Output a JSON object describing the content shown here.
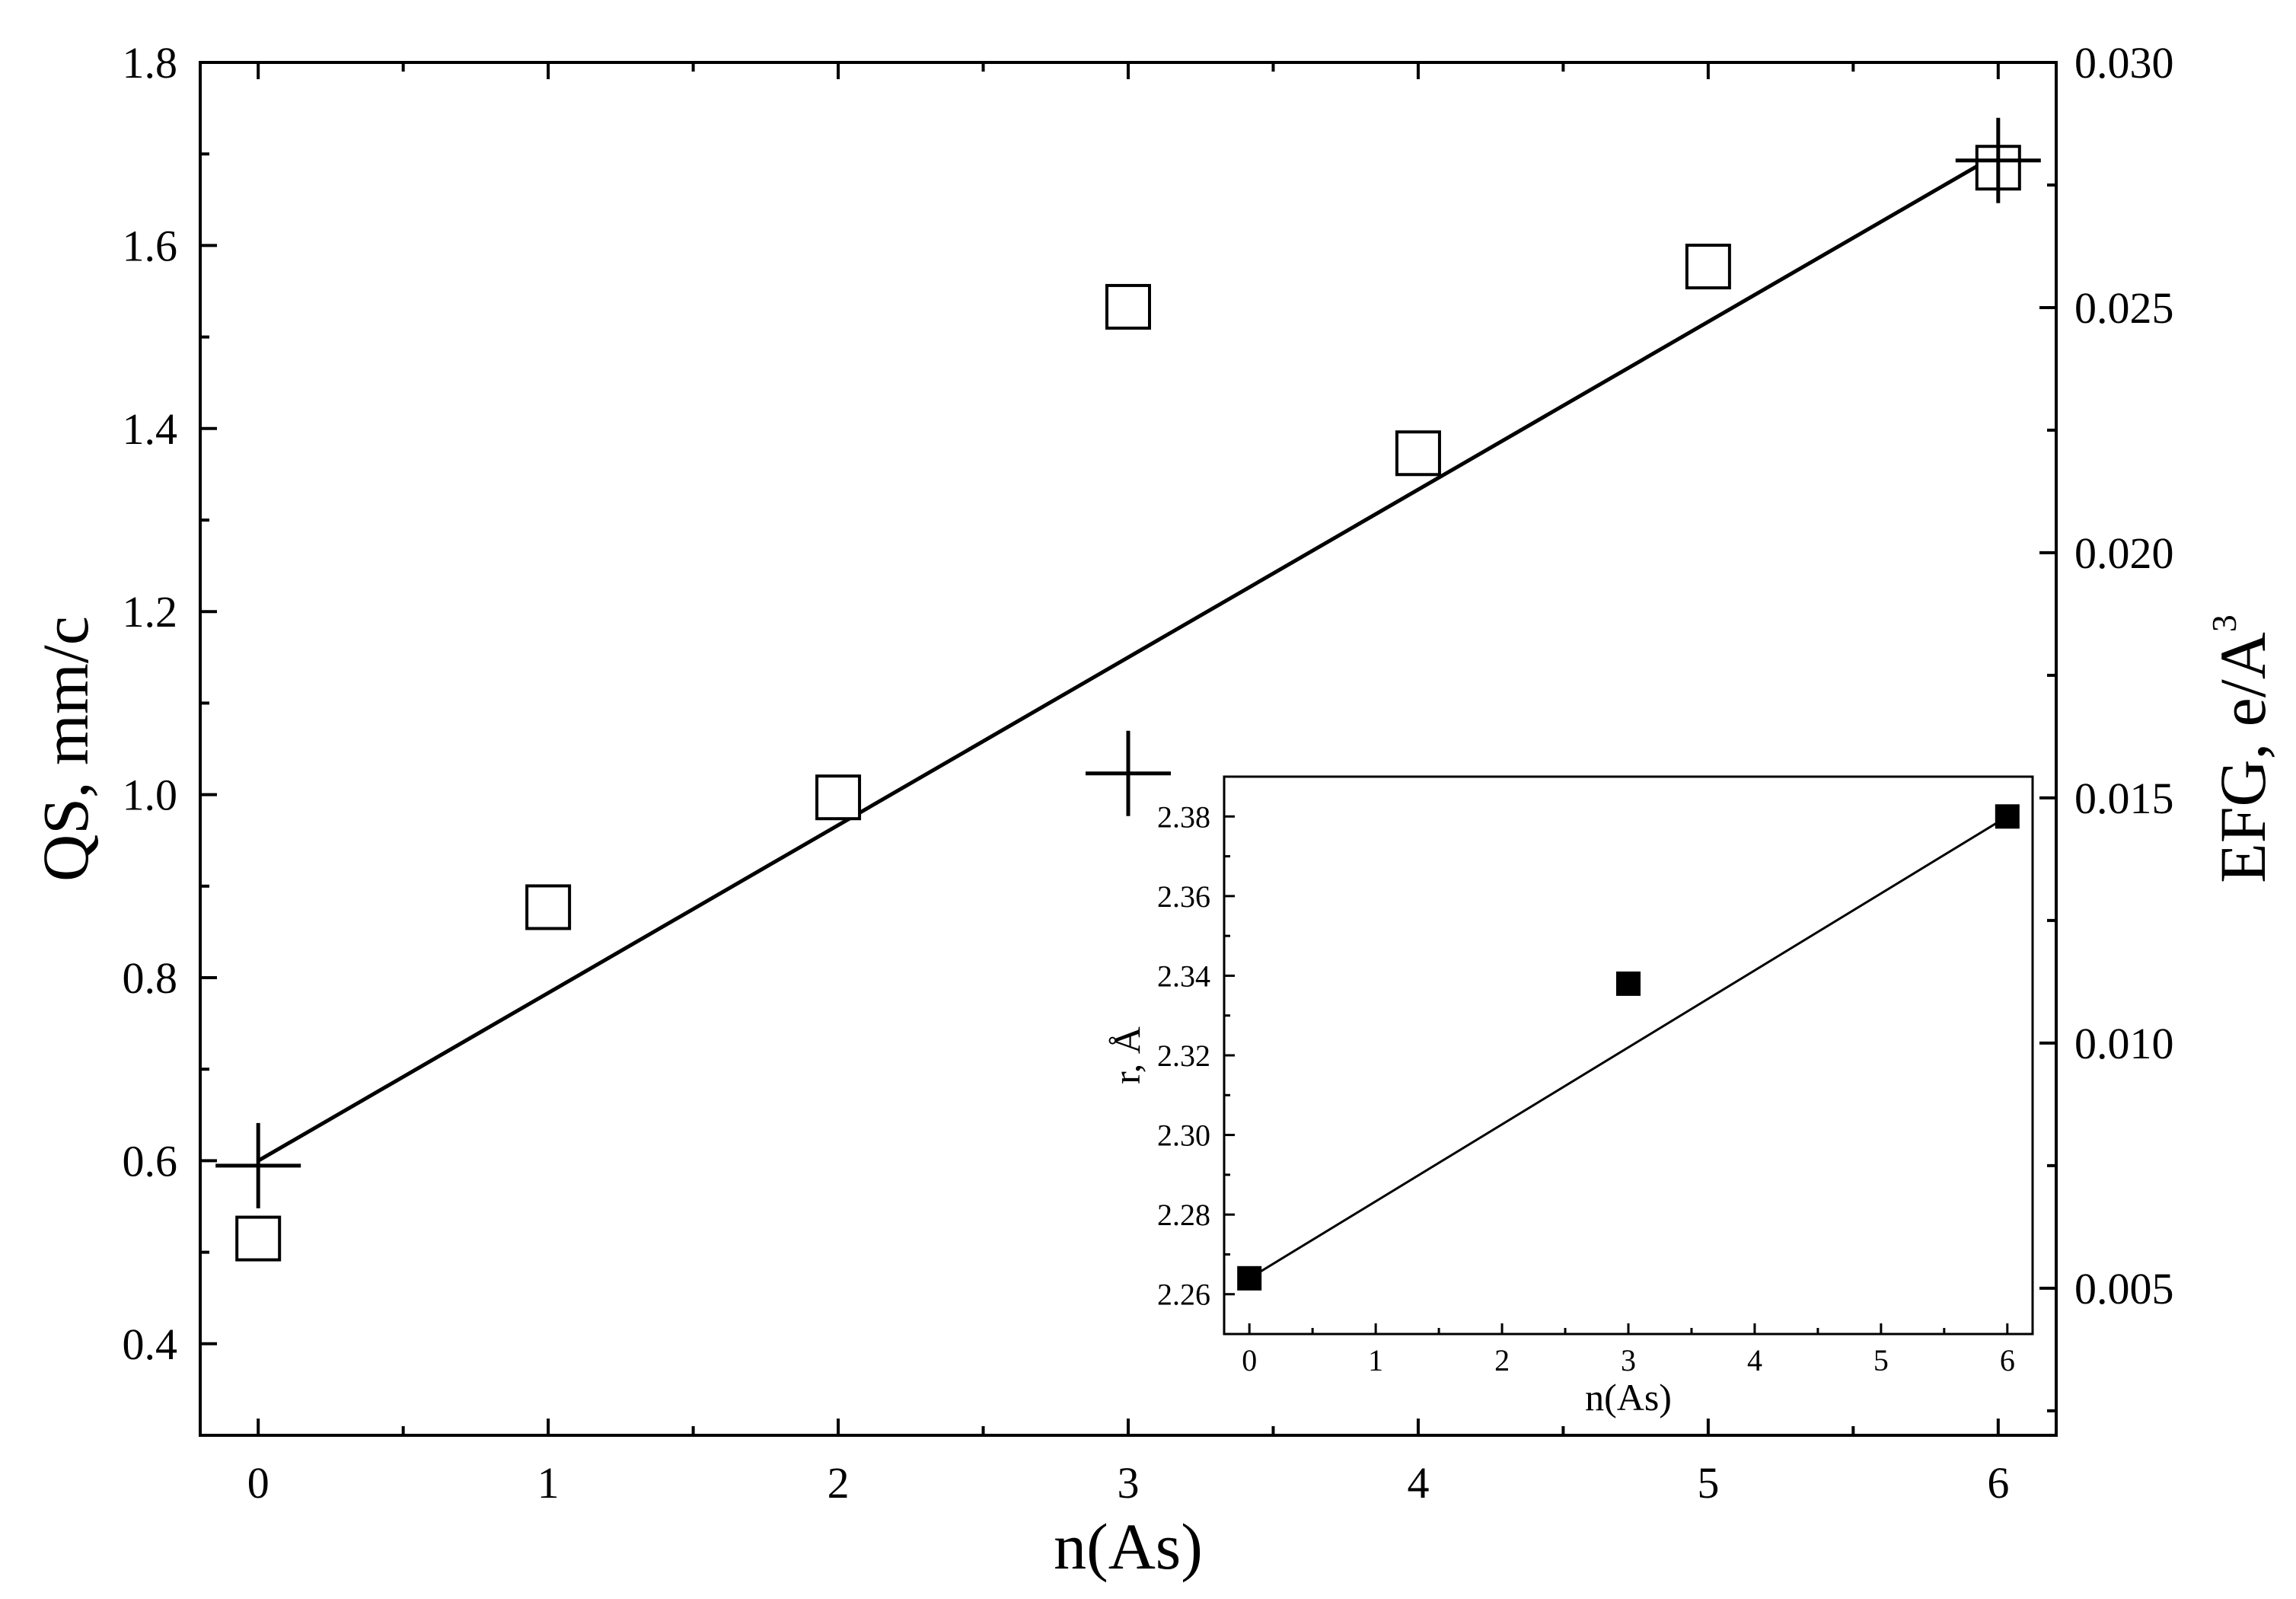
{
  "chart_data": [
    {
      "type": "scatter",
      "x_axis": {
        "label": "n(As)",
        "range": [
          -0.2,
          6.2
        ],
        "ticks": [
          0,
          1,
          2,
          3,
          4,
          5,
          6
        ]
      },
      "y_axis_left": {
        "label": "QS, mm/c",
        "range": [
          0.3,
          1.8
        ],
        "ticks": [
          "0.4",
          "0.6",
          "0.8",
          "1.0",
          "1.2",
          "1.4",
          "1.6",
          "1.8"
        ]
      },
      "y_axis_right": {
        "label": "EFG, e/A",
        "label_superscript": "3",
        "range": [
          0.002,
          0.03
        ],
        "ticks": [
          "0.005",
          "0.010",
          "0.015",
          "0.020",
          "0.025",
          "0.030"
        ]
      },
      "series": [
        {
          "marker": "open-square",
          "axis": "left",
          "x": [
            0,
            1,
            2,
            3,
            4,
            5,
            6
          ],
          "y": [
            0.515,
            0.877,
            0.997,
            1.533,
            1.373,
            1.577,
            1.685
          ]
        },
        {
          "marker": "plus",
          "axis": "right",
          "x": [
            0,
            3,
            6
          ],
          "y": [
            0.0075,
            0.0155,
            0.028
          ]
        },
        {
          "type": "line",
          "axis": "left",
          "x": [
            0,
            6
          ],
          "y": [
            0.6,
            1.7
          ]
        }
      ],
      "grid": false,
      "legend": "none"
    },
    {
      "type": "scatter",
      "placement": "inset-bottom-right",
      "x_axis": {
        "label": "n(As)",
        "range": [
          -0.2,
          6.2
        ],
        "ticks": [
          0,
          1,
          2,
          3,
          4,
          5,
          6
        ]
      },
      "y_axis": {
        "label": "r, Å",
        "range": [
          2.25,
          2.39
        ],
        "ticks": [
          "2.26",
          "2.28",
          "2.30",
          "2.32",
          "2.34",
          "2.36",
          "2.38"
        ]
      },
      "series": [
        {
          "marker": "filled-square",
          "x": [
            0,
            3,
            6
          ],
          "y": [
            2.264,
            2.338,
            2.38
          ]
        },
        {
          "type": "line",
          "x": [
            0,
            6
          ],
          "y": [
            2.264,
            2.38
          ]
        }
      ],
      "grid": false,
      "legend": "none"
    }
  ]
}
